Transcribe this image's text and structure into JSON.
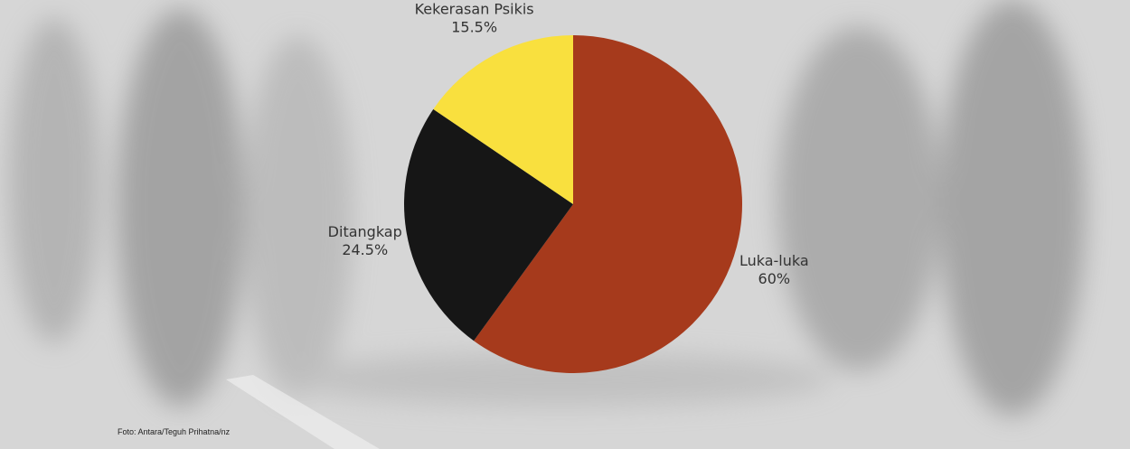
{
  "chart_data": {
    "type": "pie",
    "categories": [
      "Luka-luka",
      "Ditangkap",
      "Kekerasan Psikis"
    ],
    "values": [
      60,
      24.5,
      15.5
    ],
    "value_labels": [
      "60%",
      "24.5%",
      "15.5%"
    ],
    "colors": [
      "#a63a1c",
      "#161616",
      "#f9e03e"
    ],
    "source": "Foto: Antara/Teguh Prihatna/nz"
  }
}
